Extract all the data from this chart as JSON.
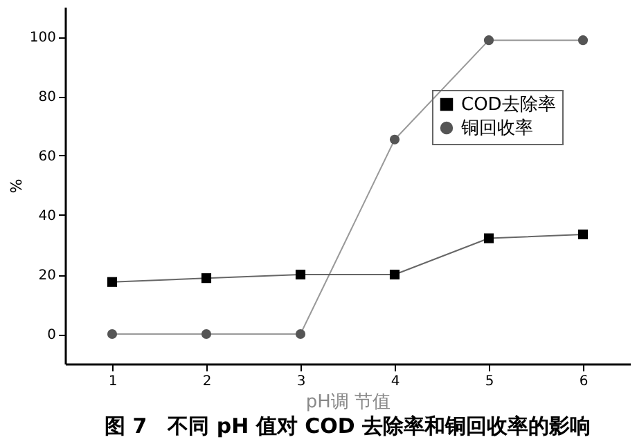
{
  "chart_data": {
    "type": "line",
    "title": "图 7　不同 pH 值对 COD 去除率和铜回收率的影响",
    "xlabel": "pH调 节值",
    "ylabel": "%",
    "x": [
      1,
      2,
      3,
      4,
      5,
      6
    ],
    "series": [
      {
        "name": "COD去除率",
        "color": "#000000",
        "marker": "square",
        "values": [
          17.5,
          18.8,
          20,
          20,
          32.2,
          33.5
        ]
      },
      {
        "name": "铜回收率",
        "color": "#555555",
        "marker": "circle",
        "values": [
          0,
          0,
          0,
          65.4,
          98.8,
          98.8
        ]
      }
    ],
    "xlim": [
      0.5,
      6.5
    ],
    "xticks": [
      1,
      2,
      3,
      4,
      5,
      6
    ],
    "ylim": [
      -10,
      110
    ],
    "yticks": [
      0,
      20,
      40,
      60,
      80,
      100
    ],
    "grid": false,
    "legend": "top right",
    "line_style": "solid"
  }
}
